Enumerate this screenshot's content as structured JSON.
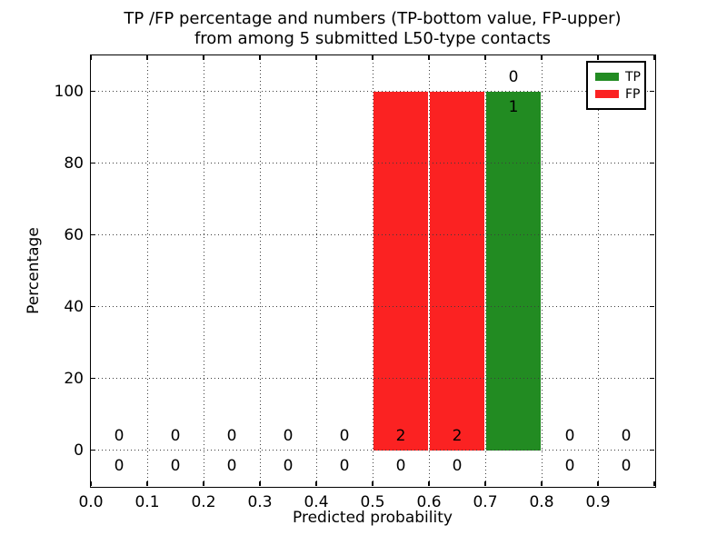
{
  "chart_data": {
    "type": "bar",
    "stacked": true,
    "title_line1": "TP /FP percentage and numbers (TP-bottom value, FP-upper)",
    "title_line2": "from among 5 submitted L50-type contacts",
    "xlabel": "Predicted probability",
    "ylabel": "Percentage",
    "xlim": [
      0.0,
      1.0
    ],
    "ylim": [
      -10,
      110
    ],
    "bin_width": 0.1,
    "bin_starts": [
      0.0,
      0.1,
      0.2,
      0.3,
      0.4,
      0.5,
      0.6,
      0.7,
      0.8,
      0.9
    ],
    "series": [
      {
        "name": "TP",
        "color": "#228b22",
        "percentages": [
          0,
          0,
          0,
          0,
          0,
          0,
          0,
          100,
          0,
          0
        ],
        "counts": [
          0,
          0,
          0,
          0,
          0,
          0,
          0,
          1,
          0,
          0
        ]
      },
      {
        "name": "FP",
        "color": "#fb2222",
        "percentages": [
          0,
          0,
          0,
          0,
          0,
          100,
          100,
          0,
          0,
          0
        ],
        "counts": [
          0,
          0,
          0,
          0,
          0,
          2,
          2,
          0,
          0,
          0
        ]
      }
    ],
    "count_label_rule": "FP count drawn above top of TP bar, TP count drawn below it",
    "xticks": {
      "values": [
        0.0,
        0.1,
        0.2,
        0.3,
        0.4,
        0.5,
        0.6,
        0.7,
        0.8,
        0.9,
        1.0
      ],
      "labels": [
        "0.0",
        "0.1",
        "0.2",
        "0.3",
        "0.4",
        "0.5",
        "0.6",
        "0.7",
        "0.8",
        "0.9",
        ""
      ]
    },
    "yticks": {
      "values": [
        0,
        20,
        40,
        60,
        80,
        100
      ],
      "labels": [
        "0",
        "20",
        "40",
        "60",
        "80",
        "100"
      ]
    },
    "grid": "dotted",
    "legend": [
      {
        "label": "TP",
        "color": "#228b22"
      },
      {
        "label": "FP",
        "color": "#fb2222"
      }
    ],
    "legend_position": "upper right"
  }
}
